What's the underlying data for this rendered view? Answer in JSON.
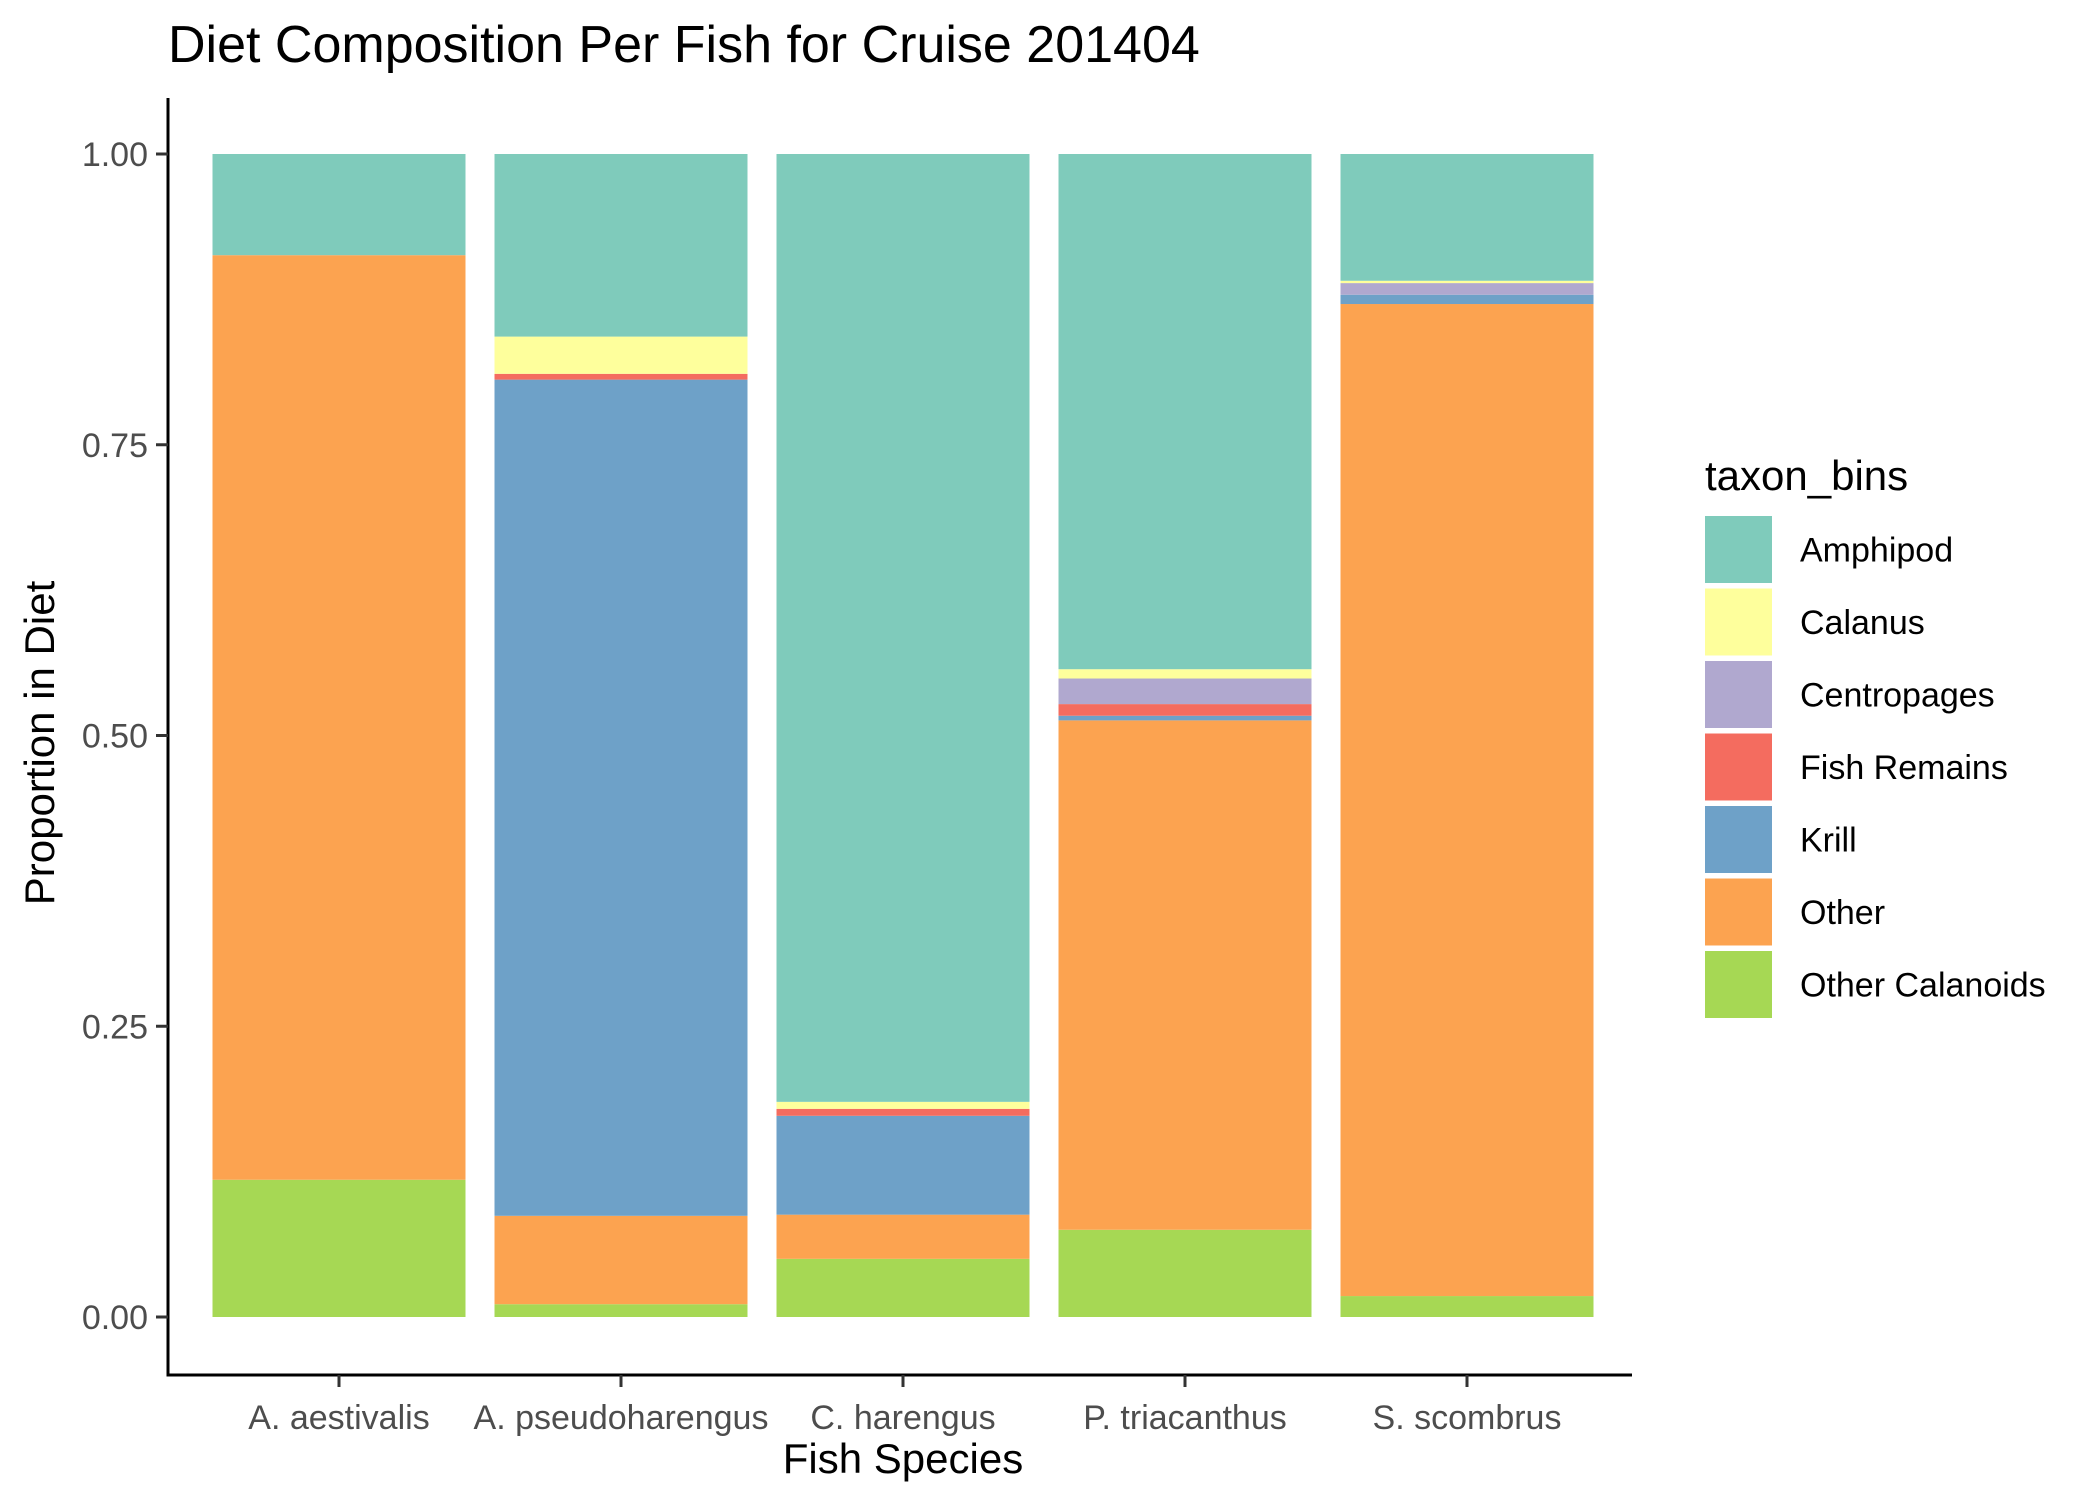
{
  "chart_data": {
    "type": "bar",
    "stacked": true,
    "title": "Diet Composition Per Fish for Cruise 201404",
    "xlabel": "Fish Species",
    "ylabel": "Proportion in Diet",
    "ylim": [
      0,
      1
    ],
    "yticks": [
      "0.00",
      "0.25",
      "0.50",
      "0.75",
      "1.00"
    ],
    "grid": false,
    "legend_title": "taxon_bins",
    "legend_position": "right",
    "categories": [
      "A. aestivalis",
      "A. pseudoharengus",
      "C. harengus",
      "P. triacanthus",
      "S. scombrus"
    ],
    "series": [
      {
        "name": "Other Calanoids",
        "color": "#a6d854",
        "values": [
          0.118,
          0.011,
          0.05,
          0.075,
          0.018
        ]
      },
      {
        "name": "Other",
        "color": "#fca350",
        "values": [
          0.795,
          0.076,
          0.038,
          0.438,
          0.853
        ]
      },
      {
        "name": "Krill",
        "color": "#6ea1c8",
        "values": [
          0.0,
          0.719,
          0.085,
          0.004,
          0.008
        ]
      },
      {
        "name": "Fish Remains",
        "color": "#f46c5f",
        "values": [
          0.0,
          0.005,
          0.006,
          0.01,
          0.0
        ]
      },
      {
        "name": "Centropages",
        "color": "#b0a8cf",
        "values": [
          0.0,
          0.0,
          0.0,
          0.022,
          0.01
        ]
      },
      {
        "name": "Calanus",
        "color": "#feff9c",
        "values": [
          0.0,
          0.032,
          0.006,
          0.008,
          0.002
        ]
      },
      {
        "name": "Amphipod",
        "color": "#7fcbbb",
        "values": [
          0.087,
          0.157,
          0.815,
          0.443,
          0.109
        ]
      }
    ],
    "legend_order": [
      "Amphipod",
      "Calanus",
      "Centropages",
      "Fish Remains",
      "Krill",
      "Other",
      "Other Calanoids"
    ]
  }
}
